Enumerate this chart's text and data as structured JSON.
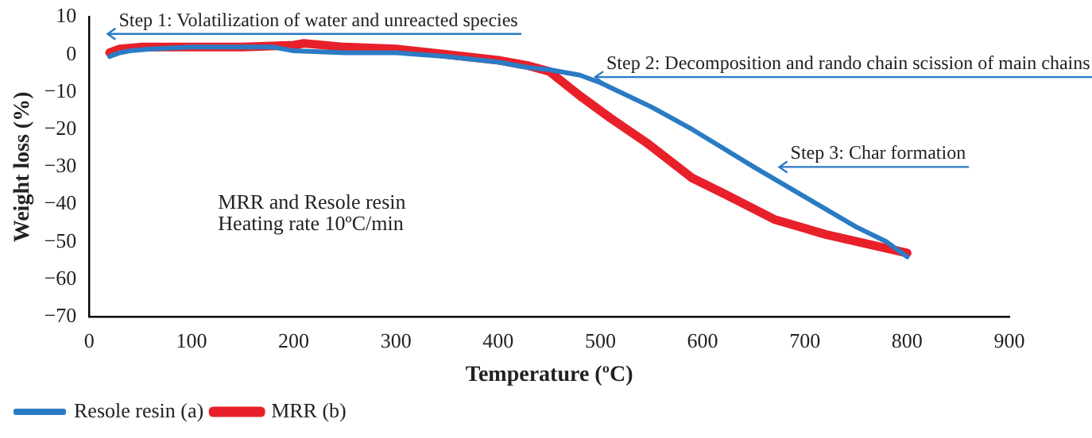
{
  "chart_data": {
    "type": "line",
    "xlabel": "Temperature (ºC)",
    "ylabel": "Weight loss (%)",
    "xlim": [
      0,
      900
    ],
    "xticks": [
      0,
      100,
      200,
      300,
      400,
      500,
      600,
      700,
      800,
      900
    ],
    "ylim": [
      -70,
      10
    ],
    "yticks": [
      -70,
      -60,
      -50,
      -40,
      -30,
      -20,
      -10,
      0,
      10
    ],
    "grid": false,
    "legend": "bottom left",
    "marker": "none",
    "line_style": "solid",
    "series": [
      {
        "name": "Resole resin (a)",
        "color": "#2b7bc4",
        "x": [
          20,
          30,
          40,
          60,
          100,
          150,
          180,
          200,
          250,
          300,
          350,
          400,
          430,
          450,
          480,
          500,
          550,
          590,
          620,
          650,
          700,
          750,
          780,
          800
        ],
        "values": [
          -0.5,
          0.5,
          1,
          1.5,
          2,
          2,
          2,
          1,
          0.5,
          0.5,
          -0.5,
          -2,
          -3.5,
          -4,
          -5.5,
          -7.5,
          -14,
          -20,
          -25,
          -30,
          -38,
          -46,
          -50,
          -54
        ]
      },
      {
        "name": "MRR (b)",
        "color": "#e8202a",
        "x": [
          20,
          30,
          50,
          100,
          150,
          200,
          210,
          250,
          300,
          350,
          400,
          430,
          450,
          480,
          510,
          545,
          590,
          620,
          670,
          720,
          760,
          800
        ],
        "values": [
          0.5,
          1.5,
          2,
          2,
          2,
          2.5,
          3,
          2,
          1.5,
          0,
          -1.5,
          -3,
          -4.5,
          -11,
          -17,
          -23.5,
          -33,
          -37,
          -44,
          -48,
          -50.5,
          -53
        ]
      }
    ],
    "annotations": [
      "Step 1: Volatilization of water and unreacted species",
      "Step 2: Decomposition and rando chain scission of main chains",
      "Step 3: Char formation",
      "MRR and Resole resin",
      "Heating rate 10ºC/min"
    ]
  }
}
